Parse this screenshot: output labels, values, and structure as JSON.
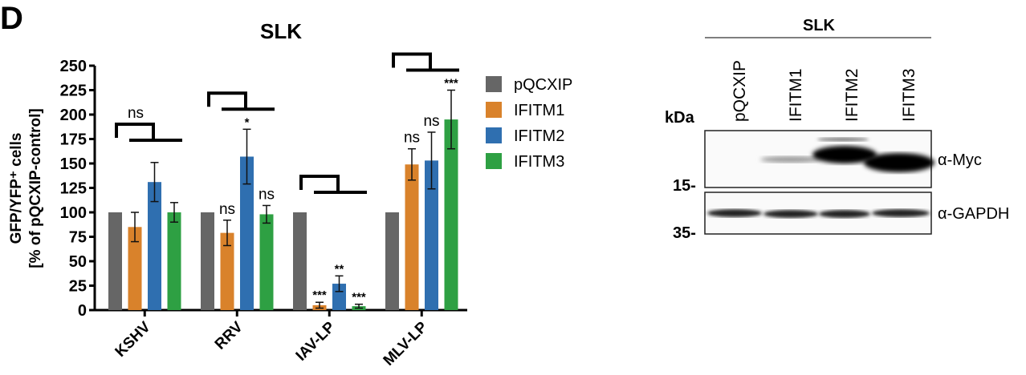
{
  "panel_label": "D",
  "chart_data": {
    "type": "bar",
    "title": "SLK",
    "ylabel_line1": "GFP/YFP⁺ cells",
    "ylabel_line2": "[% of pQCXIP-control]",
    "ylim": [
      0,
      250
    ],
    "yticks": [
      0,
      25,
      50,
      75,
      100,
      125,
      150,
      175,
      200,
      225,
      250
    ],
    "categories": [
      "KSHV",
      "RRV",
      "IAV-LP",
      "MLV-LP"
    ],
    "legend_placement": "right",
    "series": [
      {
        "name": "pQCXIP",
        "color": "#666666",
        "values": [
          100,
          100,
          100,
          100
        ],
        "errors": [
          0,
          0,
          0,
          0
        ],
        "annotations": [
          "",
          "",
          "",
          ""
        ]
      },
      {
        "name": "IFITM1",
        "color": "#d9822b",
        "values": [
          85,
          79,
          5,
          149
        ],
        "errors": [
          15,
          13,
          3,
          16
        ],
        "annotations": [
          "",
          "ns",
          "***",
          "ns"
        ]
      },
      {
        "name": "IFITM2",
        "color": "#2f6fb0",
        "values": [
          131,
          157,
          27,
          153
        ],
        "errors": [
          20,
          28,
          8,
          29
        ],
        "annotations": [
          "",
          "*",
          "**",
          "ns"
        ]
      },
      {
        "name": "IFITM3",
        "color": "#2ea043",
        "values": [
          100,
          98,
          4,
          195
        ],
        "errors": [
          10,
          9,
          2,
          30
        ],
        "annotations": [
          "",
          "ns",
          "***",
          "***"
        ]
      }
    ],
    "group_annotations": [
      "ns",
      "",
      "",
      ""
    ]
  },
  "blot": {
    "title": "SLK",
    "kda_label": "kDa",
    "lanes": [
      "pQCXIP",
      "IFITM1",
      "IFITM2",
      "IFITM3"
    ],
    "markers": [
      "15-",
      "35-"
    ],
    "rows": [
      "α-Myc",
      "α-GAPDH"
    ]
  }
}
